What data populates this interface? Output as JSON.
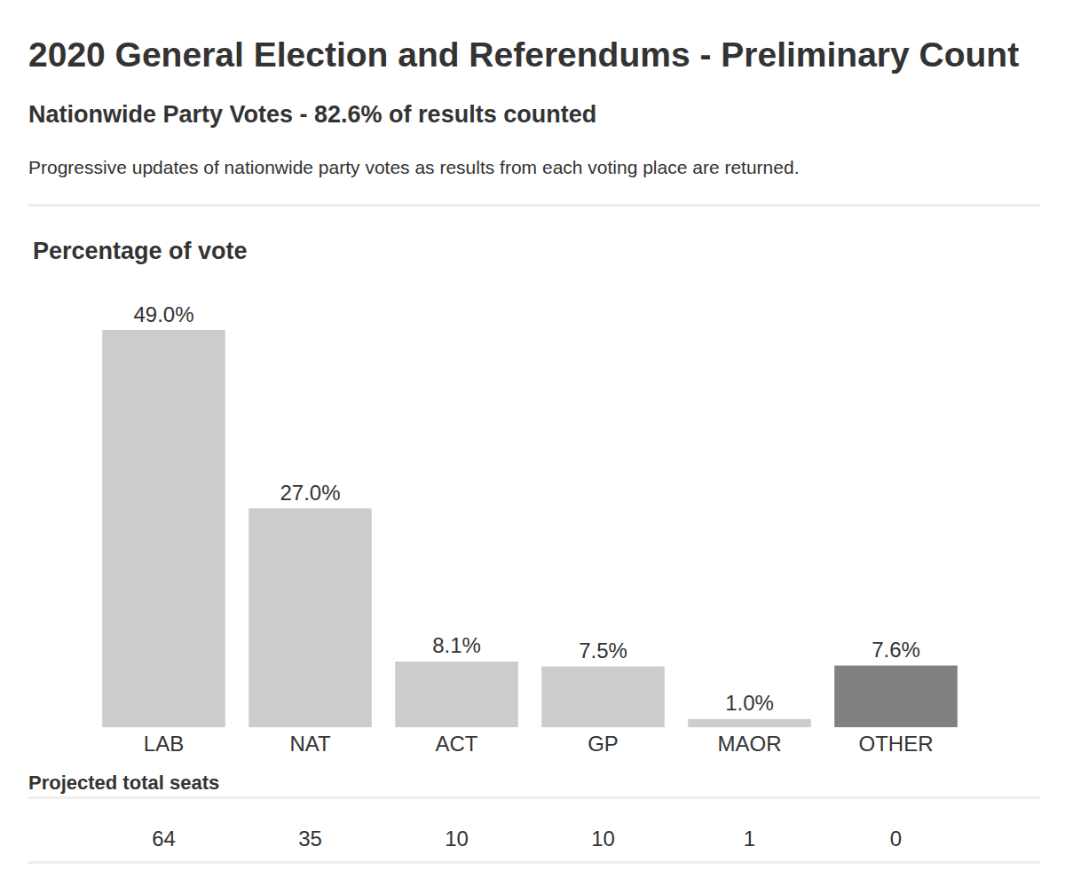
{
  "header": {
    "title": "2020 General Election and Referendums - Preliminary Count",
    "subtitle": "Nationwide Party Votes - 82.6% of results counted",
    "description": "Progressive updates of nationwide party votes as results from each voting place are returned."
  },
  "chart_data": {
    "type": "bar",
    "title": "Percentage of vote",
    "categories": [
      "LAB",
      "NAT",
      "ACT",
      "GP",
      "MAOR",
      "OTHER"
    ],
    "values": [
      49.0,
      27.0,
      8.1,
      7.5,
      1.0,
      7.6
    ],
    "value_labels": [
      "49.0%",
      "27.0%",
      "8.1%",
      "7.5%",
      "1.0%",
      "7.6%"
    ],
    "colors": [
      "#cccccc",
      "#cccccc",
      "#cccccc",
      "#cccccc",
      "#cccccc",
      "#808080"
    ],
    "ylim": [
      0,
      49
    ],
    "grid": false,
    "data_labels": true,
    "tick_labels": "x"
  },
  "seats": {
    "label": "Projected total seats",
    "values": [
      64,
      35,
      10,
      10,
      1,
      0
    ]
  }
}
